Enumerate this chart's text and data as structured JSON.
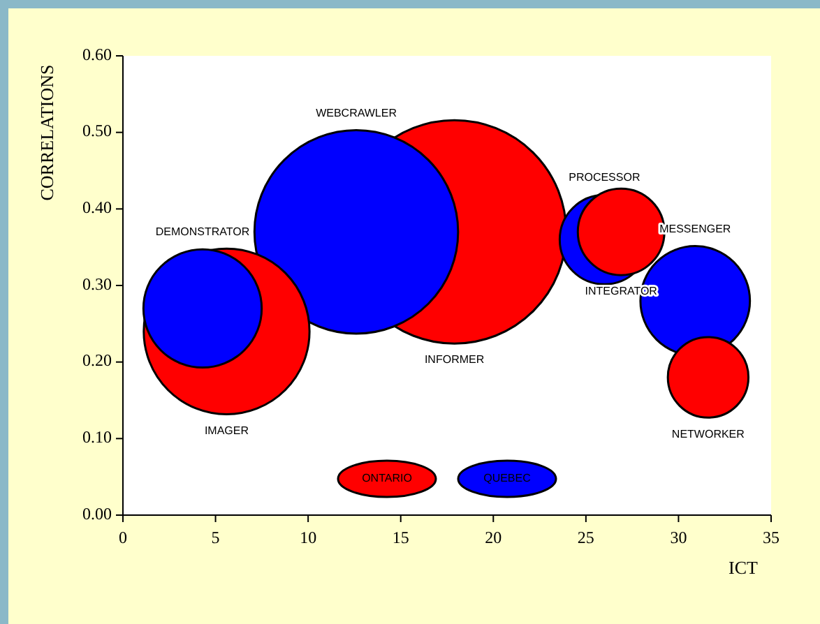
{
  "chart_data": {
    "type": "bubble",
    "xlabel": "ICT",
    "ylabel": "CORRELATIONS",
    "xlim": [
      0,
      35
    ],
    "xticks": [
      0,
      5,
      10,
      15,
      20,
      25,
      30,
      35
    ],
    "ylim": [
      0,
      0.6
    ],
    "yticks": [
      {
        "value": 0,
        "label": "0.00"
      },
      {
        "value": 0.1,
        "label": "0.10"
      },
      {
        "value": 0.2,
        "label": "0.20"
      },
      {
        "value": 0.3,
        "label": "0.30"
      },
      {
        "value": 0.4,
        "label": "0.40"
      },
      {
        "value": 0.5,
        "label": "0.50"
      },
      {
        "value": 0.6,
        "label": "0.60"
      }
    ],
    "grid": false,
    "legend": "bottom",
    "series": [
      {
        "name": "ONTARIO",
        "color": "#ff0000",
        "x": [
          5.6,
          17.9,
          26.9,
          31.6
        ],
        "values": [
          0.24,
          0.37,
          0.37,
          0.18
        ],
        "sizes": [
          0.55,
          1,
          0.15,
          0.13
        ]
      },
      {
        "name": "QUEBEC",
        "color": "#0000ff",
        "x": [
          4.3,
          12.6,
          26.0,
          30.9
        ],
        "values": [
          0.27,
          0.37,
          0.36,
          0.28
        ],
        "sizes": [
          0.28,
          0.83,
          0.16,
          0.24
        ]
      }
    ],
    "annotations": [
      "IMAGER",
      "INFORMER",
      "INTEGRATOR",
      "NETWORKER",
      "DEMONSTRATOR",
      "WEBCRAWLER",
      "PROCESSOR",
      "MESSENGER"
    ]
  }
}
